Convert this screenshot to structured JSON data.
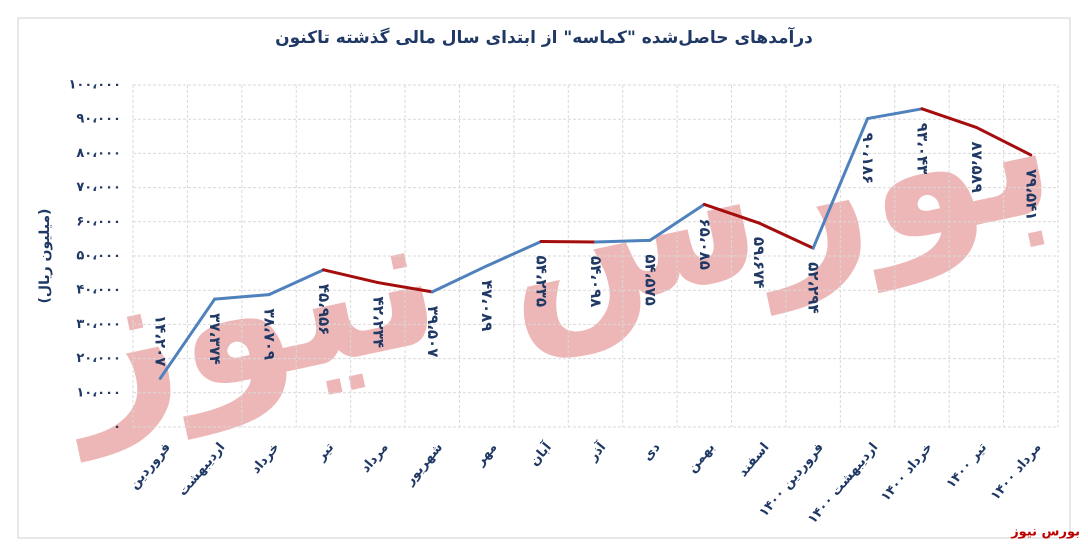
{
  "chart_data": {
    "type": "line",
    "title": "درآمدهای حاصل‌شده \"کماسه\" از ابتدای سال مالی گذشته تاکنون",
    "y_label": "(میلیون ریال)",
    "watermark": "بورس نیوز",
    "source": "بورس نیوز",
    "categories": [
      "فروردین",
      "اردیبهشت",
      "خرداد",
      "تیر",
      "مرداد",
      "شهریور",
      "مهر",
      "آبان",
      "آذر",
      "دی",
      "بهمن",
      "اسفند",
      "فروردین ۱۴۰۰",
      "اردیبهشت ۱۴۰۰",
      "خرداد ۱۴۰۰",
      "تیر ۱۴۰۰",
      "مرداد ۱۴۰۰"
    ],
    "values": [
      14207,
      37374,
      38709,
      45956,
      42234,
      39507,
      47089,
      54235,
      54098,
      54575,
      65085,
      59674,
      52294,
      90186,
      93043,
      87589,
      79541
    ],
    "value_labels": [
      "۱۴،۲۰۷",
      "۳۷،۳۷۴",
      "۳۸،۷۰۹",
      "۴۵،۹۵۶",
      "۴۲،۲۳۴",
      "۳۹،۵۰۷",
      "۴۷،۰۸۹",
      "۵۴،۲۳۵",
      "۵۴،۰۹۸",
      "۵۴،۵۷۵",
      "۶۵،۰۸۵",
      "۵۹،۶۷۴",
      "۵۲،۲۹۴",
      "۹۰،۱۸۶",
      "۹۳،۰۴۳",
      "۸۷،۵۸۹",
      "۷۹،۵۴۱"
    ],
    "rise_color": "#4f81bd",
    "fall_color": "#a50d0d",
    "ylim": [
      0,
      100000
    ],
    "yticks": [
      {
        "value": 0,
        "label": "۰"
      },
      {
        "value": 10000,
        "label": "۱۰،۰۰۰"
      },
      {
        "value": 20000,
        "label": "۲۰،۰۰۰"
      },
      {
        "value": 30000,
        "label": "۳۰،۰۰۰"
      },
      {
        "value": 40000,
        "label": "۴۰،۰۰۰"
      },
      {
        "value": 50000,
        "label": "۵۰،۰۰۰"
      },
      {
        "value": 60000,
        "label": "۶۰،۰۰۰"
      },
      {
        "value": 70000,
        "label": "۷۰،۰۰۰"
      },
      {
        "value": 80000,
        "label": "۸۰،۰۰۰"
      },
      {
        "value": 90000,
        "label": "۹۰،۰۰۰"
      },
      {
        "value": 100000,
        "label": "۱۰۰،۰۰۰"
      }
    ],
    "grid": true
  }
}
